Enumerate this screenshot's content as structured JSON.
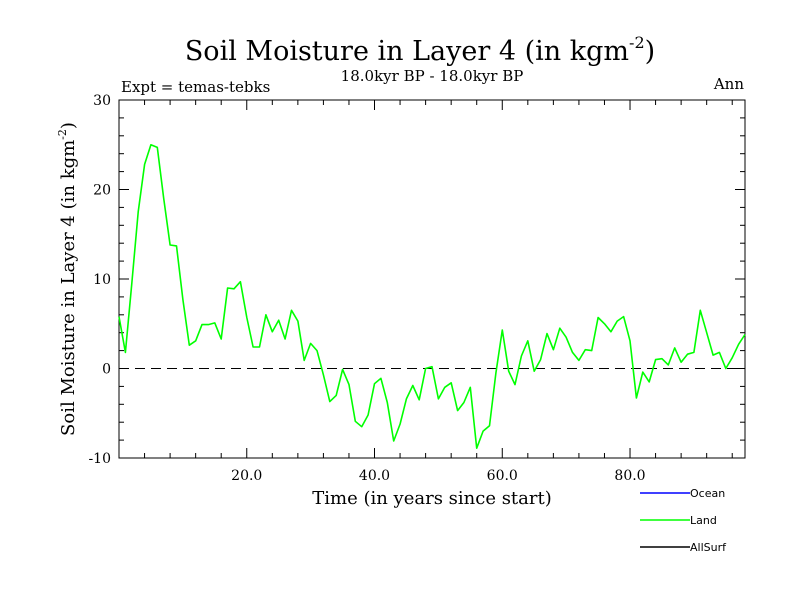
{
  "chart_data": {
    "type": "line",
    "title_main": "Soil Moisture in Layer 4 (in kgm",
    "title_sup": "-2",
    "title_close": ")",
    "subtitle": "18.0kyr BP - 18.0kyr BP",
    "left_label": "Expt = temas-tebks",
    "right_label": "Ann",
    "xlabel": "Time (in years since start)",
    "ylabel_main": "Soil Moisture in Layer 4 (in kgm",
    "ylabel_sup": "-2",
    "ylabel_close": ")",
    "xlim": [
      0,
      98
    ],
    "ylim": [
      -10,
      30
    ],
    "x_ticks": [
      20,
      40,
      60,
      80
    ],
    "x_tick_labels": [
      "20.0",
      "40.0",
      "60.0",
      "80.0"
    ],
    "y_ticks": [
      -10,
      0,
      10,
      20,
      30
    ],
    "y_tick_labels": [
      "-10",
      "0",
      "10",
      "20",
      "30"
    ],
    "zero_line": 0,
    "series": [
      {
        "name": "Land",
        "color": "#00ff00",
        "x": [
          0,
          1,
          2,
          3,
          4,
          5,
          6,
          7,
          8,
          9,
          10,
          11,
          12,
          13,
          14,
          15,
          16,
          17,
          18,
          19,
          20,
          21,
          22,
          23,
          24,
          25,
          26,
          27,
          28,
          29,
          30,
          31,
          32,
          33,
          34,
          35,
          36,
          37,
          38,
          39,
          40,
          41,
          42,
          43,
          44,
          45,
          46,
          47,
          48,
          49,
          50,
          51,
          52,
          53,
          54,
          55,
          56,
          57,
          58,
          59,
          60,
          61,
          62,
          63,
          64,
          65,
          66,
          67,
          68,
          69,
          70,
          71,
          72,
          73,
          74,
          75,
          76,
          77,
          78,
          79,
          80,
          81,
          82,
          83,
          84,
          85,
          86,
          87,
          88,
          89,
          90,
          91,
          92,
          93,
          94,
          95,
          96,
          97,
          98
        ],
        "values": [
          5.8,
          1.8,
          9.5,
          17.5,
          22.8,
          25.0,
          24.7,
          19.0,
          13.8,
          13.7,
          7.7,
          2.6,
          3.1,
          4.9,
          4.9,
          5.1,
          3.3,
          9.0,
          8.9,
          9.7,
          5.7,
          2.4,
          2.4,
          6.0,
          4.1,
          5.4,
          3.3,
          6.5,
          5.3,
          0.9,
          2.8,
          2.0,
          -0.7,
          -3.7,
          -3.0,
          -0.1,
          -1.8,
          -5.9,
          -6.5,
          -5.2,
          -1.7,
          -1.1,
          -3.8,
          -8.1,
          -6.2,
          -3.4,
          -1.9,
          -3.5,
          0.0,
          0.2,
          -3.4,
          -2.1,
          -1.6,
          -4.7,
          -3.8,
          -2.1,
          -8.9,
          -7.0,
          -6.4,
          -0.5,
          4.3,
          -0.3,
          -1.8,
          1.4,
          3.1,
          -0.3,
          1.0,
          3.9,
          2.1,
          4.5,
          3.5,
          1.8,
          0.9,
          2.1,
          2.0,
          5.7,
          5.0,
          4.1,
          5.3,
          5.8,
          3.1,
          -3.3,
          -0.4,
          -1.5,
          1.0,
          1.1,
          0.4,
          2.3,
          0.7,
          1.6,
          1.8,
          6.5,
          4.0,
          1.5,
          1.8,
          0.0,
          1.2,
          2.7,
          3.8
        ]
      }
    ],
    "legend": [
      {
        "name": "Ocean",
        "color": "#0000ff"
      },
      {
        "name": "Land",
        "color": "#00ff00"
      },
      {
        "name": "AllSurf",
        "color": "#000000"
      }
    ]
  }
}
